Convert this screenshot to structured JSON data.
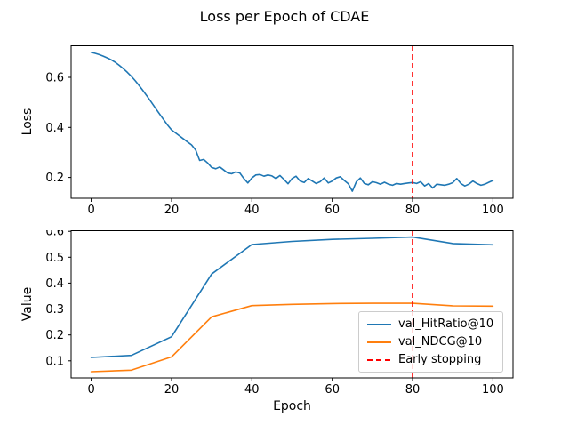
{
  "title": "Loss per Epoch of CDAE",
  "colors": {
    "line_blue": "#1f77b4",
    "line_orange": "#ff7f0e",
    "early_stopping_red": "#ff0000",
    "spine_black": "#000000",
    "legend_border": "#cccccc",
    "background": "#ffffff"
  },
  "chart_data": [
    {
      "type": "line",
      "subplot": "top",
      "ylabel": "Loss",
      "xlabel": "",
      "xlim": [
        -5,
        105
      ],
      "ylim": [
        0.117,
        0.728
      ],
      "xticks": [
        0,
        20,
        40,
        60,
        80,
        100
      ],
      "yticks": [
        0.2,
        0.4,
        0.6
      ],
      "grid": false,
      "vline": {
        "x": 80,
        "color": "#ff0000",
        "style": "dashed",
        "meaning": "Early stopping"
      },
      "series": [
        {
          "name": "Loss",
          "color": "#1f77b4",
          "style": "solid",
          "x": {
            "start": 0,
            "step": 1
          },
          "values": [
            0.7,
            0.696,
            0.691,
            0.685,
            0.678,
            0.67,
            0.66,
            0.648,
            0.635,
            0.62,
            0.604,
            0.586,
            0.566,
            0.545,
            0.523,
            0.5,
            0.477,
            0.454,
            0.432,
            0.41,
            0.39,
            0.378,
            0.366,
            0.354,
            0.342,
            0.33,
            0.31,
            0.268,
            0.272,
            0.258,
            0.24,
            0.235,
            0.242,
            0.23,
            0.218,
            0.215,
            0.222,
            0.218,
            0.196,
            0.178,
            0.198,
            0.21,
            0.212,
            0.205,
            0.21,
            0.206,
            0.196,
            0.208,
            0.192,
            0.175,
            0.196,
            0.205,
            0.186,
            0.18,
            0.196,
            0.186,
            0.176,
            0.183,
            0.198,
            0.178,
            0.186,
            0.198,
            0.203,
            0.188,
            0.175,
            0.145,
            0.183,
            0.198,
            0.176,
            0.171,
            0.183,
            0.179,
            0.173,
            0.181,
            0.173,
            0.169,
            0.176,
            0.173,
            0.176,
            0.178,
            0.18,
            0.176,
            0.183,
            0.166,
            0.176,
            0.158,
            0.173,
            0.171,
            0.169,
            0.173,
            0.179,
            0.196,
            0.176,
            0.166,
            0.173,
            0.186,
            0.176,
            0.169,
            0.173,
            0.181,
            0.188
          ]
        }
      ]
    },
    {
      "type": "line",
      "subplot": "bottom",
      "ylabel": "Value",
      "xlabel": "Epoch",
      "xlim": [
        -5,
        105
      ],
      "ylim": [
        0.034,
        0.604
      ],
      "xticks": [
        0,
        20,
        40,
        60,
        80,
        100
      ],
      "yticks": [
        0.1,
        0.2,
        0.3,
        0.4,
        0.5,
        0.6
      ],
      "grid": false,
      "vline": {
        "x": 80,
        "color": "#ff0000",
        "style": "dashed",
        "meaning": "Early stopping"
      },
      "series": [
        {
          "name": "val_HitRatio@10",
          "color": "#1f77b4",
          "style": "solid",
          "x": [
            0,
            10,
            20,
            30,
            40,
            50,
            60,
            70,
            80,
            90,
            100
          ],
          "values": [
            0.113,
            0.121,
            0.193,
            0.435,
            0.549,
            0.561,
            0.569,
            0.573,
            0.578,
            0.553,
            0.548
          ]
        },
        {
          "name": "val_NDCG@10",
          "color": "#ff7f0e",
          "style": "solid",
          "x": [
            0,
            10,
            20,
            30,
            40,
            50,
            60,
            70,
            80,
            90,
            100
          ],
          "values": [
            0.058,
            0.064,
            0.115,
            0.27,
            0.313,
            0.318,
            0.321,
            0.322,
            0.322,
            0.312,
            0.311
          ]
        }
      ],
      "legend": {
        "position": "lower right",
        "entries": [
          {
            "label": "val_HitRatio@10",
            "color": "#1f77b4",
            "style": "solid"
          },
          {
            "label": "val_NDCG@10",
            "color": "#ff7f0e",
            "style": "solid"
          },
          {
            "label": "Early stopping",
            "color": "#ff0000",
            "style": "dashed"
          }
        ]
      }
    }
  ]
}
